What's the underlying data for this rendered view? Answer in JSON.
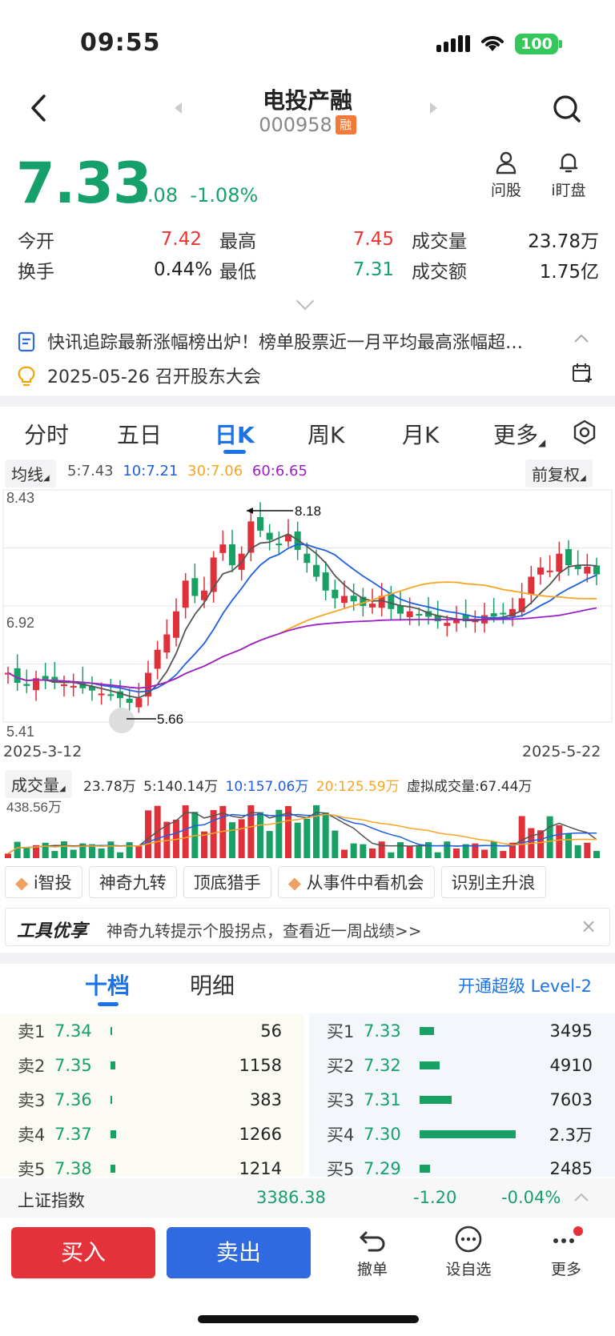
{
  "status": {
    "time": "09:55",
    "battery": "100"
  },
  "header": {
    "name": "电投产融",
    "code": "000958",
    "rong_badge": "融"
  },
  "quote": {
    "price": "7.33",
    "change": "-0.08",
    "change_pct": "-1.08%",
    "ask_label": "问股",
    "watch_label": "i盯盘",
    "stats": [
      [
        {
          "label": "今开",
          "value": "7.42",
          "color": "red"
        },
        {
          "label": "最高",
          "value": "7.45",
          "color": "red"
        },
        {
          "label": "成交量",
          "value": "23.78万",
          "color": "black"
        }
      ],
      [
        {
          "label": "换手",
          "value": "0.44%",
          "color": "black"
        },
        {
          "label": "最低",
          "value": "7.31",
          "color": "green"
        },
        {
          "label": "成交额",
          "value": "1.75亿",
          "color": "black"
        }
      ]
    ]
  },
  "news": {
    "headline": "快讯追踪最新涨幅榜出炉！榜单股票近一月平均最高涨幅超…",
    "event": "2025-05-26 召开股东大会"
  },
  "tabs": [
    "分时",
    "五日",
    "日K",
    "周K",
    "月K",
    "更多"
  ],
  "active_tab": "日K",
  "kline": {
    "ma_toggle": "均线",
    "ma5": "5:7.43",
    "ma10": "10:7.21",
    "ma30": "30:7.06",
    "ma60": "60:6.65",
    "adjust": "前复权",
    "y_top": "8.43",
    "y_mid": "6.92",
    "y_bottom": "5.41",
    "high_marker": "8.18",
    "low_marker": "5.66",
    "start_date": "2025-3-12",
    "end_date": "2025-5-22",
    "colors": {
      "ma5": "#555555",
      "ma10": "#1f5fe0",
      "ma30": "#f5a623",
      "ma60": "#9b1fc9",
      "up": "#e0303a",
      "down": "#18a065"
    }
  },
  "volume": {
    "toggle": "成交量",
    "current": "23.78万",
    "ma5": "5:140.14万",
    "ma10": "10:157.06万",
    "ma20": "20:125.59万",
    "virtual": "虚拟成交量:67.44万",
    "y_top": "438.56万"
  },
  "tools": [
    "i智投",
    "神奇九转",
    "顶底猎手",
    "从事件中看机会",
    "识别主升浪"
  ],
  "promo": {
    "brand": "工具优享",
    "text": "神奇九转提示个股拐点，查看近一周战绩>>"
  },
  "orderbook": {
    "tabs": [
      "十档",
      "明细"
    ],
    "level2": "开通超级 Level-2",
    "sells": [
      {
        "label": "卖1",
        "price": "7.34",
        "qty": "56",
        "bar": 0.01
      },
      {
        "label": "卖2",
        "price": "7.35",
        "qty": "1158",
        "bar": 0.05
      },
      {
        "label": "卖3",
        "price": "7.36",
        "qty": "383",
        "bar": 0.02
      },
      {
        "label": "卖4",
        "price": "7.37",
        "qty": "1266",
        "bar": 0.055
      },
      {
        "label": "卖5",
        "price": "7.38",
        "qty": "1214",
        "bar": 0.05
      }
    ],
    "buys": [
      {
        "label": "买1",
        "price": "7.33",
        "qty": "3495",
        "bar": 0.15
      },
      {
        "label": "买2",
        "price": "7.32",
        "qty": "4910",
        "bar": 0.21
      },
      {
        "label": "买3",
        "price": "7.31",
        "qty": "7603",
        "bar": 0.33
      },
      {
        "label": "买4",
        "price": "7.30",
        "qty": "2.3万",
        "bar": 1.0
      },
      {
        "label": "买5",
        "price": "7.29",
        "qty": "2485",
        "bar": 0.11
      }
    ]
  },
  "index": {
    "name": "上证指数",
    "value": "3386.38",
    "change": "-1.20",
    "pct": "-0.04%"
  },
  "actions": {
    "buy": "买入",
    "sell": "卖出",
    "cancel": "撤单",
    "set_watch": "设自选",
    "more": "更多"
  }
}
